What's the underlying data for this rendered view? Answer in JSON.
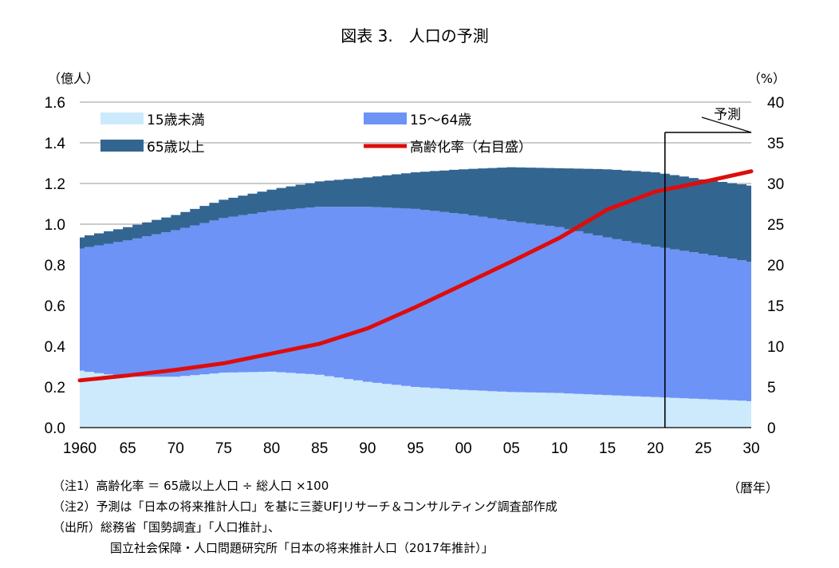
{
  "chart_data": {
    "type": "area",
    "title": "図表 3.　人口の予測",
    "ylabel_left": "（億人）",
    "ylabel_right": "（%）",
    "xlabel": "（暦年）",
    "left_axis": {
      "min": 0,
      "max": 1.6,
      "ticks": [
        "0.0",
        "0.2",
        "0.4",
        "0.6",
        "0.8",
        "1.0",
        "1.2",
        "1.4",
        "1.6"
      ]
    },
    "right_axis": {
      "min": 0,
      "max": 40,
      "ticks": [
        "0",
        "5",
        "10",
        "15",
        "20",
        "25",
        "30",
        "35",
        "40"
      ]
    },
    "x_ticks": [
      {
        "year": 1960,
        "label": "1960"
      },
      {
        "year": 1965,
        "label": "65"
      },
      {
        "year": 1970,
        "label": "70"
      },
      {
        "year": 1975,
        "label": "75"
      },
      {
        "year": 1980,
        "label": "80"
      },
      {
        "year": 1985,
        "label": "85"
      },
      {
        "year": 1990,
        "label": "90"
      },
      {
        "year": 1995,
        "label": "95"
      },
      {
        "year": 2000,
        "label": "00"
      },
      {
        "year": 2005,
        "label": "05"
      },
      {
        "year": 2010,
        "label": "10"
      },
      {
        "year": 2015,
        "label": "15"
      },
      {
        "year": 2020,
        "label": "20"
      },
      {
        "year": 2025,
        "label": "25"
      },
      {
        "year": 2030,
        "label": "30"
      }
    ],
    "x": [
      1960,
      1965,
      1970,
      1975,
      1980,
      1985,
      1990,
      1995,
      2000,
      2005,
      2010,
      2015,
      2020,
      2025,
      2030
    ],
    "series": [
      {
        "name": "15歳未満",
        "color": "#cdeafd",
        "axis": "left",
        "stack": true,
        "values": [
          0.28,
          0.25,
          0.25,
          0.27,
          0.275,
          0.26,
          0.225,
          0.2,
          0.185,
          0.175,
          0.17,
          0.16,
          0.15,
          0.14,
          0.13
        ]
      },
      {
        "name": "15～64歳",
        "color": "#6d93f7",
        "axis": "left",
        "stack": true,
        "values": [
          0.6,
          0.67,
          0.72,
          0.76,
          0.79,
          0.825,
          0.86,
          0.875,
          0.865,
          0.84,
          0.815,
          0.775,
          0.74,
          0.715,
          0.685
        ]
      },
      {
        "name": "65歳以上",
        "color": "#336591",
        "axis": "left",
        "stack": true,
        "values": [
          0.055,
          0.065,
          0.075,
          0.09,
          0.105,
          0.125,
          0.145,
          0.18,
          0.22,
          0.265,
          0.29,
          0.335,
          0.365,
          0.365,
          0.375
        ]
      },
      {
        "name": "高齢化率（右目盛）",
        "color": "#dd0d0d",
        "axis": "right",
        "type": "line",
        "values": [
          5.8,
          6.4,
          7.1,
          7.9,
          9.1,
          10.3,
          12.2,
          14.8,
          17.6,
          20.4,
          23.3,
          26.8,
          29.0,
          30.2,
          31.5
        ]
      }
    ],
    "forecast_start_year": 2021,
    "forecast_label": "予測",
    "grid": "horizontal",
    "legend_placement": "top-left inside plot"
  },
  "notes": [
    "（注1）高齢化率 ＝ 65歳以上人口 ÷ 総人口 ×100",
    "（注2）予測は「日本の将来推計人口」を基に三菱UFJリサーチ＆コンサルティング調査部作成",
    "（出所）総務省「国勢調査」「人口推計」、",
    "国立社会保障・人口問題研究所「日本の将来推計人口（2017年推計）」"
  ]
}
